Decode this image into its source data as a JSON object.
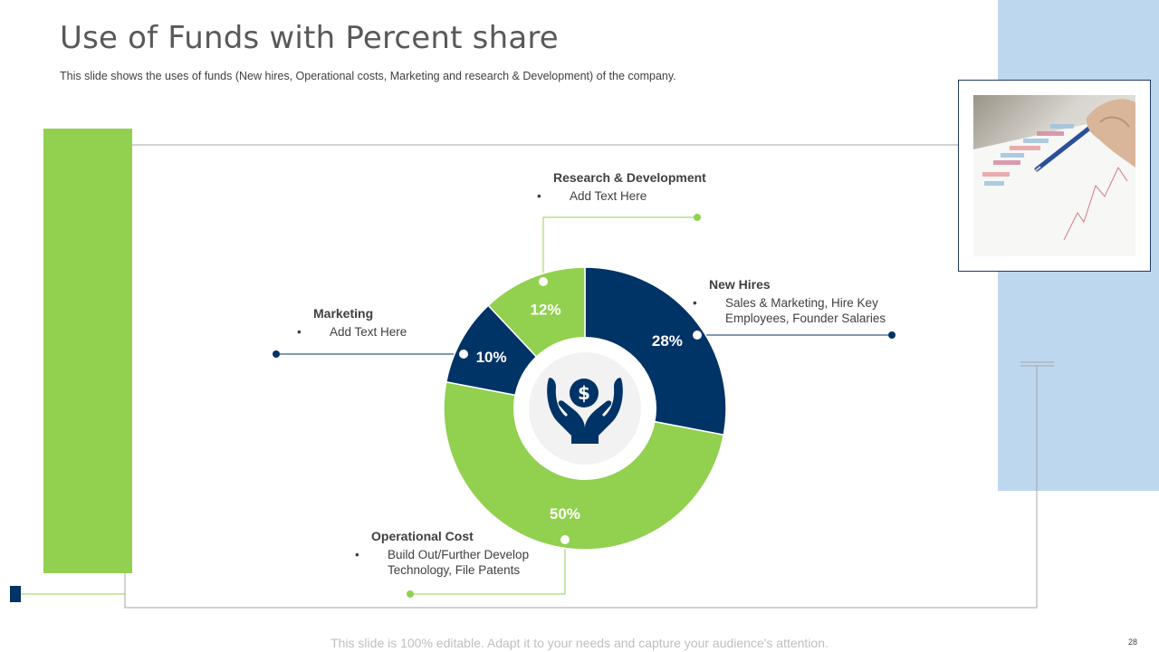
{
  "slide": {
    "title": "Use of Funds with Percent share",
    "subtitle": "This slide shows the uses of funds (New hires, Operational costs, Marketing and research & Development) of the company.",
    "footer": "This slide is 100% editable. Adapt it to your needs and capture your audience's attention.",
    "page_number": "28"
  },
  "colors": {
    "navy": "#003366",
    "green": "#92d050",
    "light_blue": "#bdd7ee",
    "line_gray": "#a6a6a6"
  },
  "icons": {
    "center": "money-hands-icon",
    "photo": "chart-pen-photo"
  },
  "chart_data": {
    "type": "pie",
    "categories": [
      "New Hires",
      "Operational Cost",
      "Marketing",
      "Research & Development"
    ],
    "values": [
      28,
      50,
      10,
      12
    ],
    "labels": [
      "28%",
      "50%",
      "10%",
      "12%"
    ],
    "colors": [
      "#003366",
      "#92d050",
      "#003366",
      "#92d050"
    ]
  },
  "callouts": {
    "research": {
      "title": "Research & Development",
      "items": [
        "Add Text Here"
      ]
    },
    "new_hires": {
      "title": "New Hires",
      "items": [
        "Sales & Marketing, Hire Key Employees, Founder Salaries"
      ]
    },
    "marketing": {
      "title": "Marketing",
      "items": [
        "Add Text Here"
      ]
    },
    "operational": {
      "title": "Operational Cost",
      "items": [
        "Build Out/Further Develop Technology, File Patents"
      ]
    }
  }
}
